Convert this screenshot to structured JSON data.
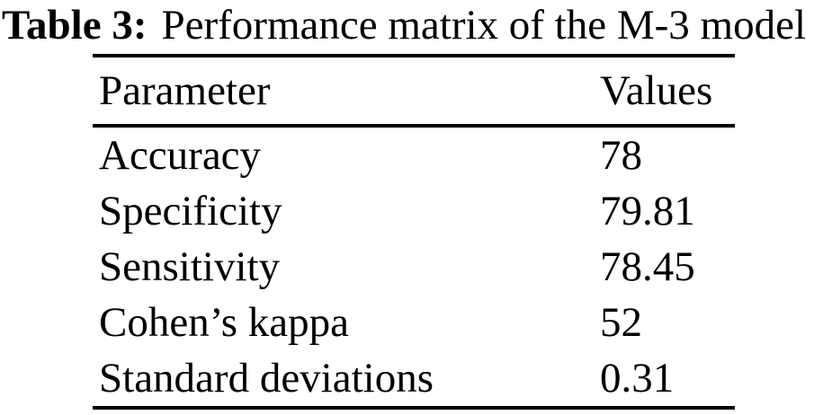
{
  "caption": {
    "label": "Table 3:",
    "text": "Performance matrix of the M-3 model"
  },
  "table": {
    "headers": {
      "parameter": "Parameter",
      "values": "Values"
    },
    "rows": [
      {
        "parameter": "Accuracy",
        "value": "78"
      },
      {
        "parameter": "Specificity",
        "value": "79.81"
      },
      {
        "parameter": "Sensitivity",
        "value": "78.45"
      },
      {
        "parameter": "Cohen’s kappa",
        "value": "52"
      },
      {
        "parameter": "Standard deviations",
        "value": "0.31"
      }
    ]
  },
  "colors": {
    "background": "#ffffff",
    "text": "#000000",
    "rule": "#000000"
  }
}
